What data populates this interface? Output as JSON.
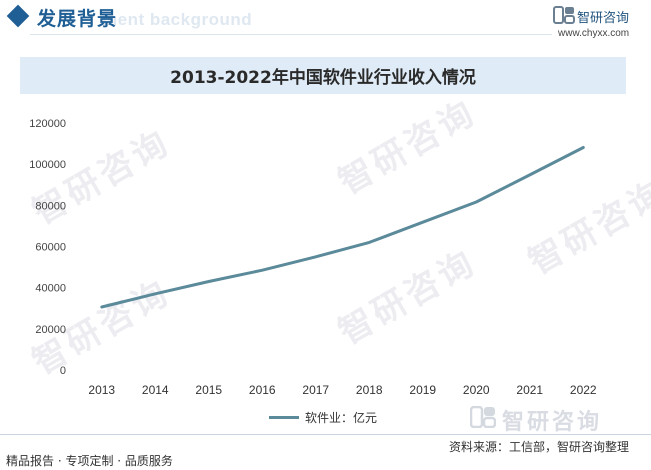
{
  "header": {
    "section_title": "发展背景",
    "section_ghost": "ment background",
    "brand_name": "智研咨询",
    "brand_url": "www.chyxx.com"
  },
  "watermark_text": "智研咨询",
  "footer": {
    "logo_text": "智研咨询",
    "left_text": "精品报告 · 专项定制 · 品质服务",
    "source_text": "资料来源：工信部，智研咨询整理"
  },
  "colors": {
    "brand_blue": "#1f5f95",
    "title_band": "#dfebf6",
    "series_line": "#5b8a9a"
  },
  "chart_data": {
    "type": "line",
    "title": "2013-2022年中国软件业行业收入情况",
    "categories": [
      "2013",
      "2014",
      "2015",
      "2016",
      "2017",
      "2018",
      "2019",
      "2020",
      "2021",
      "2022"
    ],
    "series": [
      {
        "name": "软件业：亿元",
        "values": [
          30600,
          37000,
          43000,
          48500,
          55000,
          62000,
          71800,
          81600,
          94800,
          108100
        ]
      }
    ],
    "ylim": [
      0,
      120000
    ],
    "yticks": [
      0,
      20000,
      40000,
      60000,
      80000,
      100000,
      120000
    ],
    "grid": false,
    "legend_position": "bottom"
  }
}
